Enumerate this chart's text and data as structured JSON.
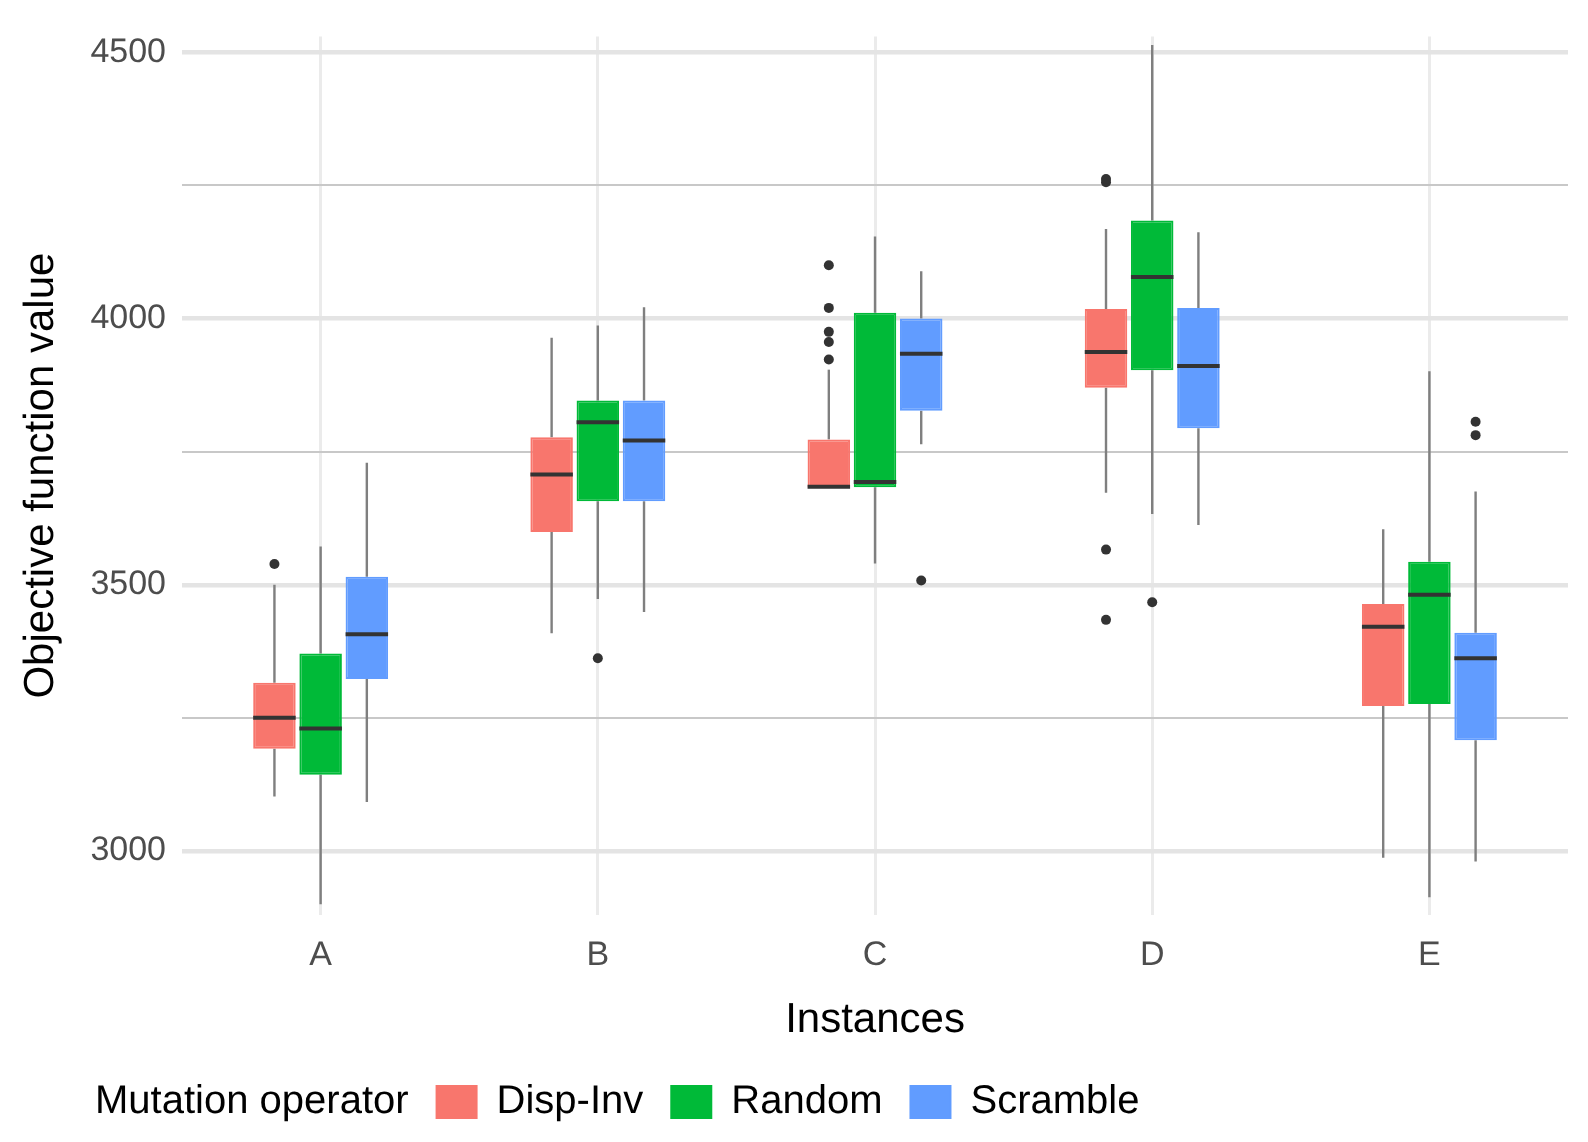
{
  "chart_data": {
    "type": "box",
    "xlabel": "Instances",
    "ylabel": "Objective function value",
    "legend_title": "Mutation operator",
    "legend": "bottom",
    "grid": true,
    "categories": [
      "A",
      "B",
      "C",
      "D",
      "E"
    ],
    "ylim": [
      2880,
      4530
    ],
    "yticks": [
      3000,
      {
        "value": 3250,
        "label": null
      },
      3500,
      {
        "value": 3750,
        "label": null
      },
      4000,
      {
        "value": 4250,
        "label": null
      },
      4500
    ],
    "series": [
      {
        "name": "Disp-Inv",
        "color": "#f8766d",
        "boxes": [
          {
            "low": 3102,
            "q1": 3192,
            "median": 3250,
            "q3": 3316,
            "high": 3500,
            "outliers": [
              3539
            ]
          },
          {
            "low": 3409,
            "q1": 3599,
            "median": 3707,
            "q3": 3777,
            "high": 3964
          },
          {
            "low": 3683,
            "q1": 3683,
            "median": 3684,
            "q3": 3773,
            "high": 3904,
            "outliers": [
              4100,
              4020,
              3975,
              3956,
              3923
            ]
          },
          {
            "low": 3673,
            "q1": 3870,
            "median": 3937,
            "q3": 4018,
            "high": 4168,
            "outliers": [
              4256,
              4262,
              3566,
              3434
            ]
          },
          {
            "low": 2987,
            "q1": 3272,
            "median": 3421,
            "q3": 3464,
            "high": 3604
          }
        ]
      },
      {
        "name": "Random",
        "color": "#00ba38",
        "boxes": [
          {
            "low": 2900,
            "q1": 3143,
            "median": 3230,
            "q3": 3371,
            "high": 3572
          },
          {
            "low": 3473,
            "q1": 3657,
            "median": 3805,
            "q3": 3846,
            "high": 3987,
            "outliers": [
              3362
            ]
          },
          {
            "low": 3540,
            "q1": 3683,
            "median": 3693,
            "q3": 4011,
            "high": 4154
          },
          {
            "low": 3633,
            "q1": 3903,
            "median": 4078,
            "q3": 4184,
            "high": 4514,
            "outliers": [
              3467
            ]
          },
          {
            "low": 2913,
            "q1": 3276,
            "median": 3481,
            "q3": 3543,
            "high": 3901
          }
        ]
      },
      {
        "name": "Scramble",
        "color": "#619cff",
        "boxes": [
          {
            "low": 3092,
            "q1": 3323,
            "median": 3407,
            "q3": 3515,
            "high": 3729
          },
          {
            "low": 3449,
            "q1": 3657,
            "median": 3771,
            "q3": 3846,
            "high": 4021
          },
          {
            "low": 3764,
            "q1": 3827,
            "median": 3934,
            "q3": 4000,
            "high": 4089,
            "outliers": [
              3508
            ]
          },
          {
            "low": 3612,
            "q1": 3794,
            "median": 3911,
            "q3": 4020,
            "high": 4162
          },
          {
            "low": 2980,
            "q1": 3208,
            "median": 3362,
            "q3": 3410,
            "high": 3675,
            "outliers": [
              3806,
              3781
            ]
          }
        ]
      }
    ]
  }
}
